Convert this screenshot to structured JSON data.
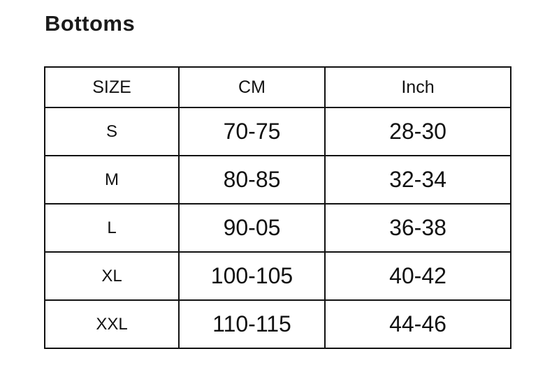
{
  "title": "Bottoms",
  "table": {
    "headers": [
      "SIZE",
      "CM",
      "Inch"
    ],
    "rows": [
      [
        "S",
        "70-75",
        "28-30"
      ],
      [
        "M",
        "80-85",
        "32-34"
      ],
      [
        "L",
        "90-05",
        "36-38"
      ],
      [
        "XL",
        "100-105",
        "40-42"
      ],
      [
        "XXL",
        "110-115",
        "44-46"
      ]
    ]
  }
}
